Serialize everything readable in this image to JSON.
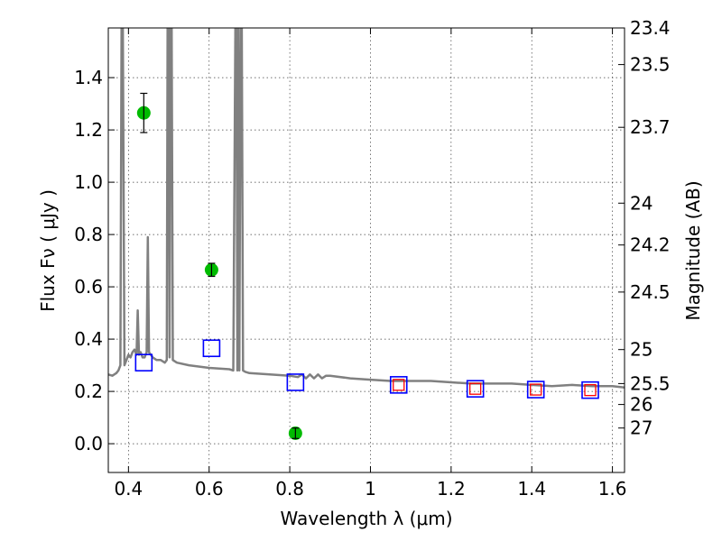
{
  "chart_data": {
    "type": "scatter",
    "title": "",
    "xlabel": "Wavelength  λ (μm)",
    "ylabel": "Flux  Fν  ( μJy )",
    "y2label": "Magnitude (AB)",
    "xlim": [
      0.35,
      1.63
    ],
    "ylim": [
      -0.11,
      1.59
    ],
    "grid": true,
    "x_ticks": [
      {
        "value": 0.4,
        "label": "0.4"
      },
      {
        "value": 0.6,
        "label": "0.6"
      },
      {
        "value": 0.8,
        "label": "0.8"
      },
      {
        "value": 1.0,
        "label": "1"
      },
      {
        "value": 1.2,
        "label": "1.2"
      },
      {
        "value": 1.4,
        "label": "1.4"
      },
      {
        "value": 1.6,
        "label": "1.6"
      }
    ],
    "y_ticks": [
      {
        "value": 0.0,
        "label": "0.0"
      },
      {
        "value": 0.2,
        "label": "0.2"
      },
      {
        "value": 0.4,
        "label": "0.4"
      },
      {
        "value": 0.6,
        "label": "0.6"
      },
      {
        "value": 0.8,
        "label": "0.8"
      },
      {
        "value": 1.0,
        "label": "1.0"
      },
      {
        "value": 1.2,
        "label": "1.2"
      },
      {
        "value": 1.4,
        "label": "1.4"
      }
    ],
    "mag_ticks": [
      {
        "flux": 1.59,
        "label": "23.4"
      },
      {
        "flux": 1.45,
        "label": "23.5"
      },
      {
        "flux": 1.21,
        "label": "23.7"
      },
      {
        "flux": 0.92,
        "label": "24"
      },
      {
        "flux": 0.76,
        "label": "24.2"
      },
      {
        "flux": 0.58,
        "label": "24.5"
      },
      {
        "flux": 0.36,
        "label": "25"
      },
      {
        "flux": 0.23,
        "label": "25.5"
      },
      {
        "flux": 0.15,
        "label": "26"
      },
      {
        "flux": 0.06,
        "label": "27"
      }
    ],
    "series": [
      {
        "kind": "line",
        "color": "#808080",
        "points": [
          [
            0.35,
            0.265
          ],
          [
            0.36,
            0.26
          ],
          [
            0.37,
            0.27
          ],
          [
            0.375,
            0.28
          ],
          [
            0.38,
            0.3
          ],
          [
            0.383,
            1.59
          ],
          [
            0.386,
            1.59
          ],
          [
            0.39,
            0.3
          ],
          [
            0.395,
            0.32
          ],
          [
            0.4,
            0.34
          ],
          [
            0.405,
            0.33
          ],
          [
            0.41,
            0.35
          ],
          [
            0.415,
            0.36
          ],
          [
            0.42,
            0.34
          ],
          [
            0.423,
            0.51
          ],
          [
            0.426,
            0.34
          ],
          [
            0.43,
            0.35
          ],
          [
            0.435,
            0.33
          ],
          [
            0.44,
            0.33
          ],
          [
            0.445,
            0.35
          ],
          [
            0.448,
            0.79
          ],
          [
            0.451,
            0.35
          ],
          [
            0.46,
            0.33
          ],
          [
            0.47,
            0.32
          ],
          [
            0.48,
            0.32
          ],
          [
            0.49,
            0.31
          ],
          [
            0.495,
            0.32
          ],
          [
            0.497,
            1.59
          ],
          [
            0.5,
            1.59
          ],
          [
            0.502,
            0.33
          ],
          [
            0.504,
            1.59
          ],
          [
            0.507,
            1.59
          ],
          [
            0.51,
            0.32
          ],
          [
            0.52,
            0.31
          ],
          [
            0.55,
            0.3
          ],
          [
            0.6,
            0.29
          ],
          [
            0.65,
            0.285
          ],
          [
            0.66,
            0.28
          ],
          [
            0.665,
            1.59
          ],
          [
            0.668,
            1.59
          ],
          [
            0.67,
            0.28
          ],
          [
            0.672,
            1.59
          ],
          [
            0.675,
            0.28
          ],
          [
            0.678,
            1.59
          ],
          [
            0.681,
            1.59
          ],
          [
            0.684,
            0.28
          ],
          [
            0.69,
            0.275
          ],
          [
            0.7,
            0.27
          ],
          [
            0.75,
            0.265
          ],
          [
            0.8,
            0.26
          ],
          [
            0.82,
            0.255
          ],
          [
            0.83,
            0.265
          ],
          [
            0.84,
            0.25
          ],
          [
            0.85,
            0.265
          ],
          [
            0.86,
            0.25
          ],
          [
            0.87,
            0.265
          ],
          [
            0.88,
            0.25
          ],
          [
            0.89,
            0.26
          ],
          [
            0.9,
            0.26
          ],
          [
            0.95,
            0.25
          ],
          [
            1.0,
            0.245
          ],
          [
            1.05,
            0.24
          ],
          [
            1.1,
            0.24
          ],
          [
            1.15,
            0.24
          ],
          [
            1.2,
            0.235
          ],
          [
            1.25,
            0.23
          ],
          [
            1.3,
            0.23
          ],
          [
            1.35,
            0.23
          ],
          [
            1.4,
            0.225
          ],
          [
            1.45,
            0.22
          ],
          [
            1.5,
            0.225
          ],
          [
            1.55,
            0.22
          ],
          [
            1.6,
            0.22
          ],
          [
            1.63,
            0.215
          ]
        ]
      },
      {
        "kind": "errorbar",
        "color": "#00bb00",
        "points": [
          {
            "x": 0.438,
            "y": 1.265,
            "err": 0.075
          },
          {
            "x": 0.606,
            "y": 0.665,
            "err": 0.025
          },
          {
            "x": 0.814,
            "y": 0.04,
            "err": 0.02
          }
        ]
      },
      {
        "kind": "square",
        "color": "#0000ff",
        "points": [
          [
            0.438,
            0.31
          ],
          [
            0.606,
            0.365
          ],
          [
            0.814,
            0.235
          ],
          [
            1.07,
            0.225
          ],
          [
            1.26,
            0.21
          ],
          [
            1.41,
            0.207
          ],
          [
            1.545,
            0.205
          ]
        ]
      },
      {
        "kind": "square-small",
        "color": "#ff0000",
        "points": [
          [
            1.07,
            0.225
          ],
          [
            1.26,
            0.21
          ],
          [
            1.41,
            0.207
          ],
          [
            1.545,
            0.205
          ]
        ]
      }
    ]
  }
}
